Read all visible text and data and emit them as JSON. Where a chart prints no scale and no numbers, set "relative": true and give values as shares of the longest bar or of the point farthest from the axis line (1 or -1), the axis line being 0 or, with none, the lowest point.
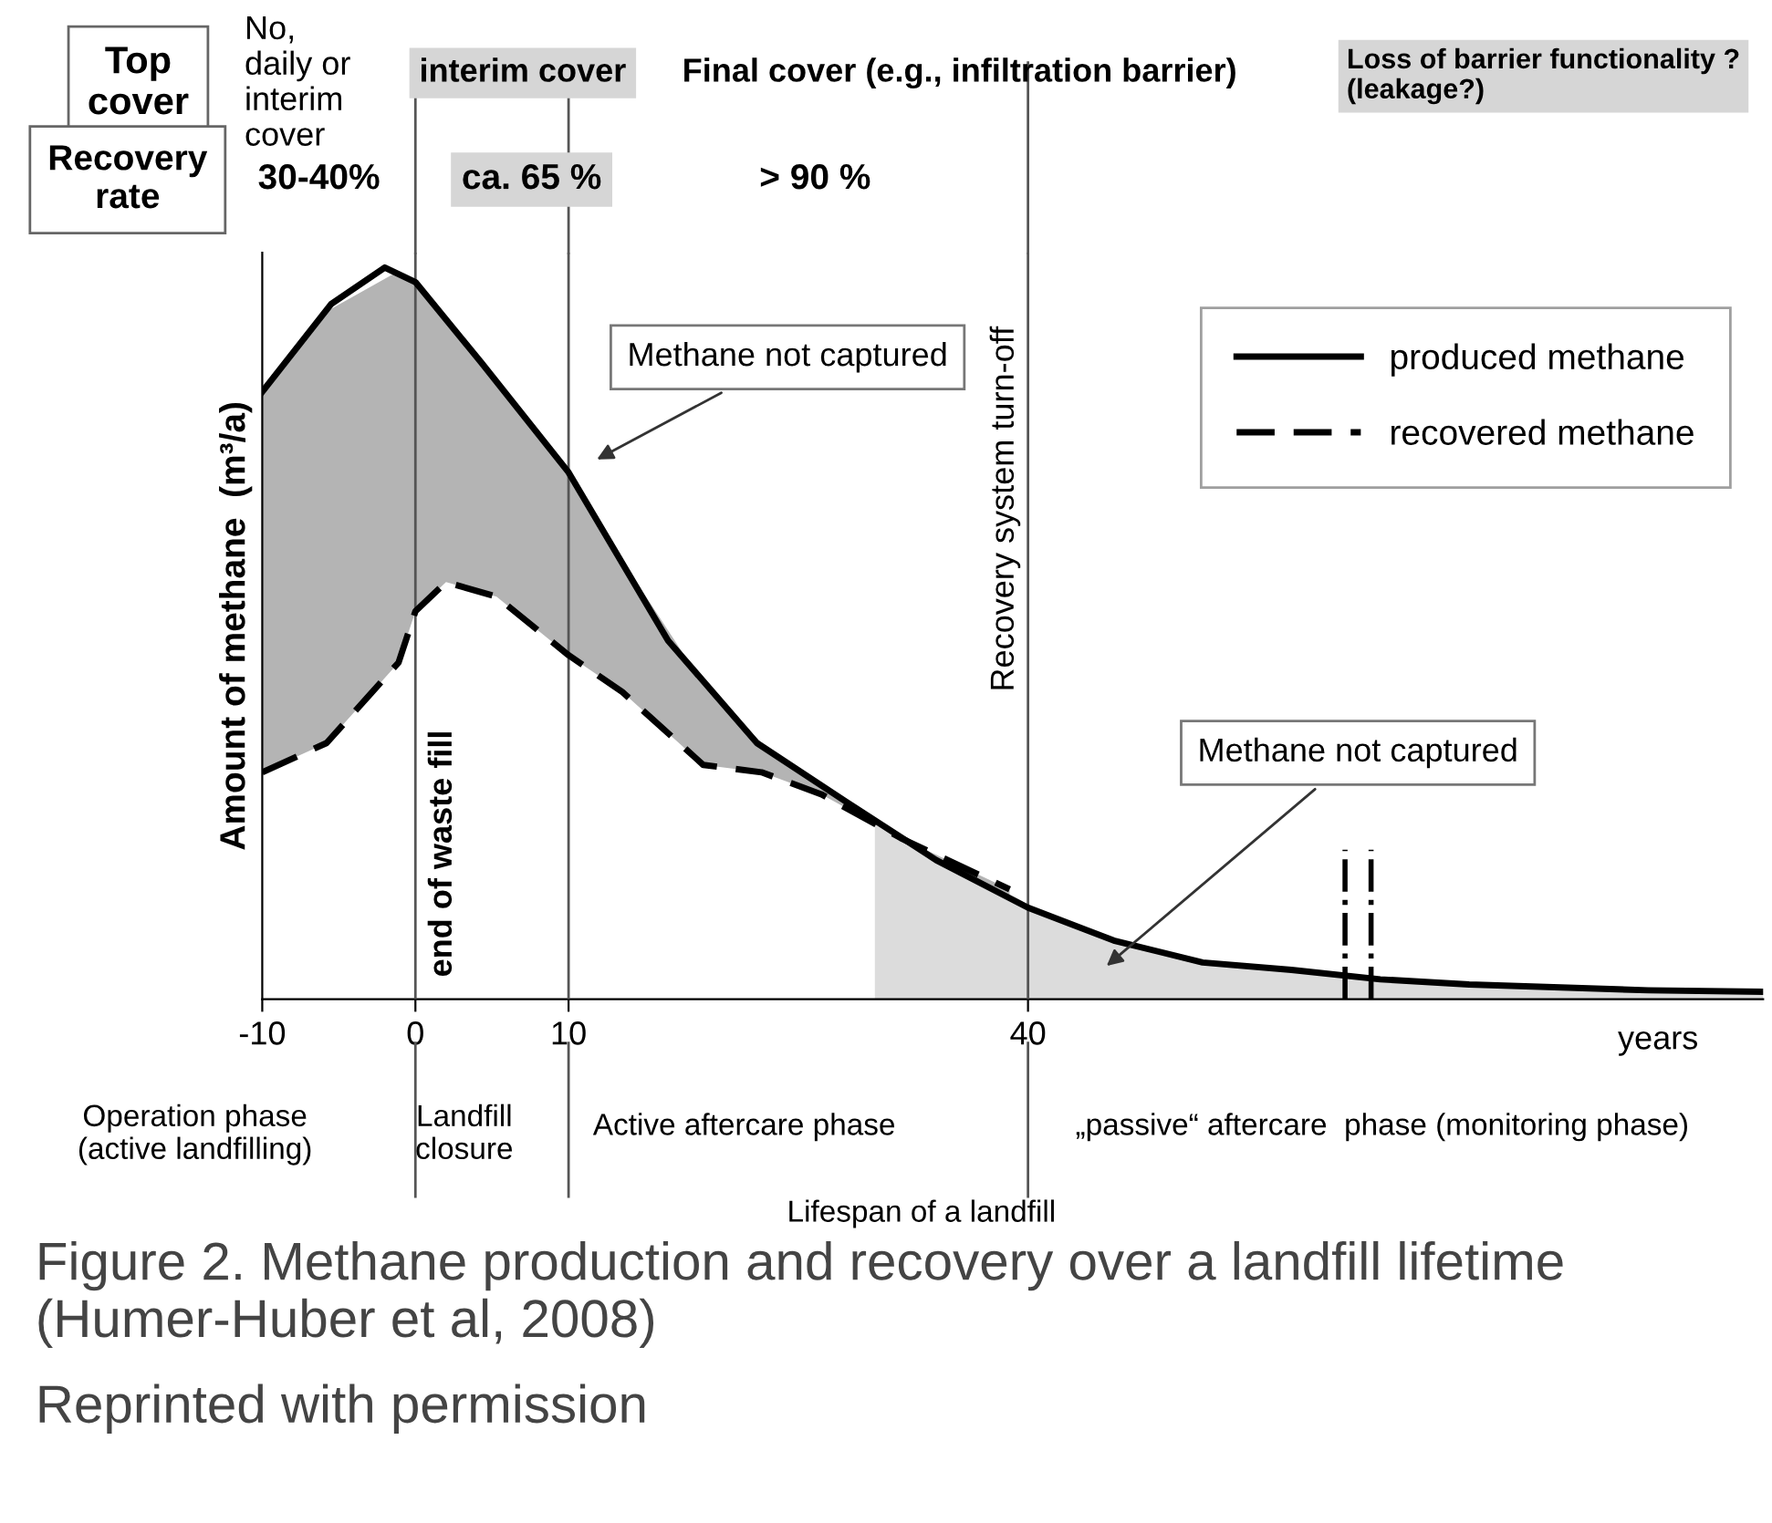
{
  "chart_data": {
    "type": "line",
    "relative": true,
    "title": "Figure 2. Methane production and recovery over a landfill lifetime (Humer-Huber et al, 2008)",
    "xlabel": "years",
    "ylabel": "Amount of methane  (m³/a)",
    "xlim": [
      -10,
      88
    ],
    "xticks": [
      -10,
      0,
      10,
      40
    ],
    "grid": false,
    "legend": "top right",
    "marker": "none",
    "series": [
      {
        "name": "produced methane",
        "color": "#000000",
        "line_style": "solid",
        "x": [
          -10,
          -5.5,
          -2,
          0,
          4.3,
          10,
          16.5,
          22.3,
          28.1,
          34,
          40,
          45.6,
          51.4,
          57.2,
          63,
          68.8,
          80.5,
          88
        ],
        "values": [
          0.83,
          0.95,
          1.0,
          0.98,
          0.87,
          0.72,
          0.49,
          0.35,
          0.27,
          0.19,
          0.125,
          0.08,
          0.05,
          0.04,
          0.027,
          0.02,
          0.012,
          0.01
        ]
      },
      {
        "name": "recovered methane",
        "color": "#000000",
        "line_style": "dashed",
        "x": [
          -10,
          -5.8,
          -1.1,
          0,
          2,
          5.3,
          10,
          13.5,
          18.8,
          22.6,
          26.5,
          31.7,
          38.8
        ],
        "values": [
          0.31,
          0.35,
          0.46,
          0.53,
          0.57,
          0.55,
          0.47,
          0.42,
          0.32,
          0.31,
          0.28,
          0.22,
          0.15
        ],
        "lower": [
          0.31,
          0.35,
          0.46,
          0.53,
          0.57,
          0.55,
          0.47,
          0.42,
          0.32,
          0.31,
          0.28,
          0.22,
          0.15
        ],
        "upper": [
          0.83,
          0.94,
          0.995,
          0.98,
          0.93,
          0.84,
          0.72,
          0.6,
          0.43,
          0.35,
          0.29,
          0.22,
          0.14
        ]
      },
      {
        "type": "area",
        "color": "#dcdcdc",
        "x": [
          30,
          34,
          40,
          45.6,
          51.4,
          57.2,
          63,
          68.8,
          80.5,
          88
        ],
        "values": [
          0.24,
          0.19,
          0.125,
          0.08,
          0.05,
          0.04,
          0.027,
          0.02,
          0.012,
          0.01
        ]
      }
    ],
    "ref_lines": [
      {
        "axis": "x",
        "value": 0,
        "label": "end of waste fill",
        "line_style": "solid"
      },
      {
        "axis": "x",
        "value": 10,
        "line_style": "solid"
      },
      {
        "axis": "x",
        "value": 40,
        "label": "Recovery system turn-off",
        "line_style": "solid"
      },
      {
        "axis": "x",
        "value": 60.7,
        "line_style": "dashed"
      },
      {
        "axis": "x",
        "value": 62.4,
        "line_style": "dashed"
      }
    ],
    "annotations": [
      "Top\ncover",
      "No,\ndaily or\ninterim\ncover",
      "interim cover",
      "Final cover (e.g., infiltration barrier)",
      "Loss of barrier functionality ?\n(leakage?)",
      "Recovery\nrate",
      "30-40%",
      "ca. 65 %",
      "> 90 %",
      "Methane not captured",
      "Methane not captured",
      "Operation phase\n(active landfilling)",
      "Landfill\nclosure",
      "Active aftercare phase",
      "„passive“ aftercare  phase (monitoring phase)",
      "Lifespan of a landfill",
      "Reprinted with permission"
    ]
  }
}
